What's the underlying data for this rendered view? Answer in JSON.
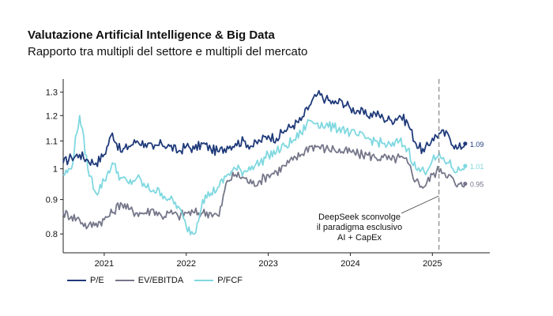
{
  "title": "Valutazione Artificial Intelligence & Big Data",
  "subtitle": "Rapporto tra multipli del settore e multipli del mercato",
  "chart_data": {
    "type": "line",
    "title": "Valutazione Artificial Intelligence & Big Data",
    "subtitle": "Rapporto tra multipli del settore e multipli del mercato",
    "xlim": [
      2020.5,
      2025.7
    ],
    "ylim": [
      0.75,
      1.36
    ],
    "y_scale": "log",
    "y_ticks": [
      0.8,
      0.9,
      1,
      1.1,
      1.2,
      1.3
    ],
    "y_tick_labels": [
      "0.8",
      "0.9",
      "1",
      "1.1",
      "1.2",
      "1.3"
    ],
    "x_ticks": [
      2021,
      2022,
      2023,
      2024,
      2025
    ],
    "x_tick_labels": [
      "2021",
      "2022",
      "2023",
      "2024",
      "2025"
    ],
    "grid": false,
    "legend": "bottom",
    "series": [
      {
        "name": "P/E",
        "color": "#1f3a7a",
        "end_label": "1.09",
        "x": [
          2020.5,
          2020.6,
          2020.7,
          2020.8,
          2020.9,
          2021.0,
          2021.1,
          2021.2,
          2021.3,
          2021.4,
          2021.5,
          2021.6,
          2021.7,
          2021.8,
          2021.9,
          2022.0,
          2022.1,
          2022.2,
          2022.3,
          2022.4,
          2022.5,
          2022.6,
          2022.7,
          2022.8,
          2022.9,
          2023.0,
          2023.1,
          2023.2,
          2023.3,
          2023.4,
          2023.5,
          2023.6,
          2023.7,
          2023.8,
          2023.9,
          2024.0,
          2024.1,
          2024.2,
          2024.3,
          2024.4,
          2024.5,
          2024.6,
          2024.7,
          2024.8,
          2024.9,
          2025.0,
          2025.1,
          2025.2,
          2025.3,
          2025.4
        ],
        "values": [
          1.02,
          1.04,
          1.05,
          1.03,
          1.02,
          1.05,
          1.13,
          1.06,
          1.08,
          1.1,
          1.09,
          1.07,
          1.09,
          1.08,
          1.06,
          1.08,
          1.07,
          1.09,
          1.07,
          1.06,
          1.08,
          1.09,
          1.1,
          1.08,
          1.1,
          1.12,
          1.11,
          1.14,
          1.16,
          1.18,
          1.24,
          1.29,
          1.27,
          1.25,
          1.26,
          1.23,
          1.22,
          1.2,
          1.21,
          1.19,
          1.18,
          1.2,
          1.17,
          1.09,
          1.06,
          1.11,
          1.13,
          1.12,
          1.07,
          1.09
        ]
      },
      {
        "name": "EV/EBITDA",
        "color": "#75768a",
        "end_label": "0.95",
        "x": [
          2020.5,
          2020.6,
          2020.7,
          2020.8,
          2020.9,
          2021.0,
          2021.1,
          2021.2,
          2021.3,
          2021.4,
          2021.5,
          2021.6,
          2021.7,
          2021.8,
          2021.9,
          2022.0,
          2022.1,
          2022.2,
          2022.3,
          2022.4,
          2022.5,
          2022.6,
          2022.7,
          2022.8,
          2022.9,
          2023.0,
          2023.1,
          2023.2,
          2023.3,
          2023.4,
          2023.5,
          2023.6,
          2023.7,
          2023.8,
          2023.9,
          2024.0,
          2024.1,
          2024.2,
          2024.3,
          2024.4,
          2024.5,
          2024.6,
          2024.7,
          2024.8,
          2024.9,
          2025.0,
          2025.1,
          2025.2,
          2025.3,
          2025.4
        ],
        "values": [
          0.86,
          0.85,
          0.84,
          0.82,
          0.83,
          0.84,
          0.86,
          0.89,
          0.87,
          0.86,
          0.86,
          0.87,
          0.85,
          0.86,
          0.85,
          0.86,
          0.86,
          0.86,
          0.86,
          0.85,
          0.96,
          0.98,
          0.97,
          0.95,
          0.96,
          0.98,
          0.99,
          1.01,
          1.03,
          1.05,
          1.08,
          1.08,
          1.07,
          1.07,
          1.06,
          1.06,
          1.05,
          1.05,
          1.04,
          1.04,
          1.03,
          1.04,
          1.02,
          0.96,
          0.94,
          0.98,
          1.0,
          0.98,
          0.94,
          0.95
        ]
      },
      {
        "name": "P/FCF",
        "color": "#7fd8e0",
        "end_label": "1.01",
        "x": [
          2020.5,
          2020.6,
          2020.7,
          2020.8,
          2020.9,
          2021.0,
          2021.1,
          2021.2,
          2021.3,
          2021.4,
          2021.5,
          2021.6,
          2021.7,
          2021.8,
          2021.9,
          2022.0,
          2022.1,
          2022.2,
          2022.3,
          2022.4,
          2022.5,
          2022.6,
          2022.7,
          2022.8,
          2022.9,
          2023.0,
          2023.1,
          2023.2,
          2023.3,
          2023.4,
          2023.5,
          2023.6,
          2023.7,
          2023.8,
          2023.9,
          2024.0,
          2024.1,
          2024.2,
          2024.3,
          2024.4,
          2024.5,
          2024.6,
          2024.7,
          2024.8,
          2024.9,
          2025.0,
          2025.1,
          2025.2,
          2025.3,
          2025.4
        ],
        "values": [
          0.98,
          1.0,
          1.2,
          1.0,
          0.92,
          0.96,
          1.02,
          0.97,
          0.95,
          0.97,
          0.94,
          0.93,
          0.92,
          0.9,
          0.88,
          0.82,
          0.8,
          0.9,
          0.92,
          0.94,
          0.98,
          1.0,
          0.99,
          1.01,
          1.02,
          1.05,
          1.06,
          1.08,
          1.1,
          1.13,
          1.18,
          1.17,
          1.16,
          1.15,
          1.15,
          1.13,
          1.12,
          1.11,
          1.1,
          1.09,
          1.08,
          1.1,
          1.07,
          1.0,
          0.99,
          1.03,
          1.04,
          1.02,
          0.99,
          1.01
        ]
      }
    ],
    "annotations": [
      {
        "x": 2025.08,
        "style": "dashed-vertical-line",
        "text_lines": [
          "DeepSeek sconvolge",
          "il paradigma esclusivo",
          "AI + CapEx"
        ]
      }
    ]
  }
}
